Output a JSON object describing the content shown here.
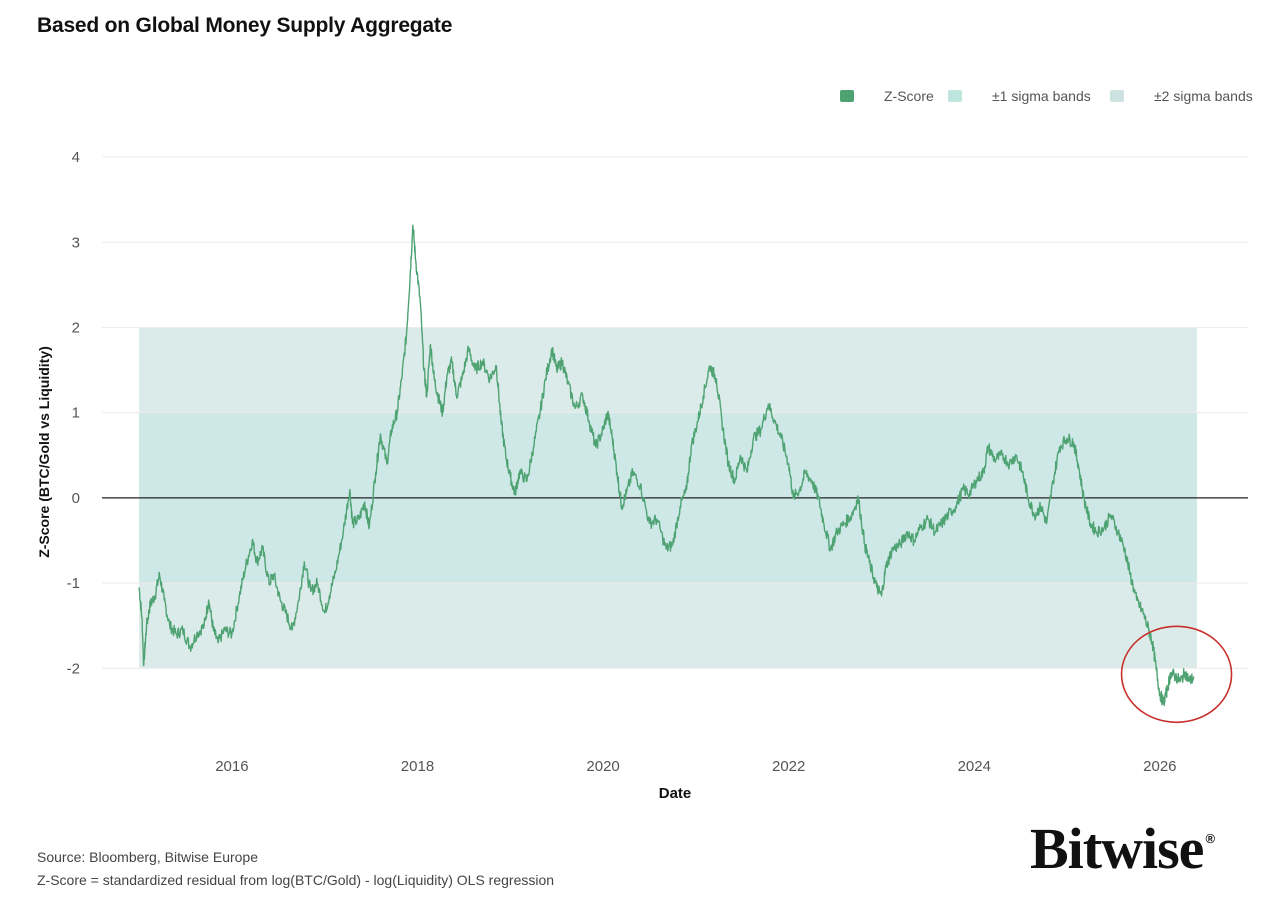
{
  "chart_data": {
    "type": "line",
    "title": "Based on Global Money Supply Aggregate",
    "xlabel": "Date",
    "ylabel": "Z-Score (BTC/Gold vs Liquidity)",
    "xlim": [
      2014.6,
      2026.95
    ],
    "ylim": [
      -2.9,
      4.2
    ],
    "x_ticks": [
      2016,
      2018,
      2020,
      2022,
      2024,
      2026
    ],
    "y_ticks": [
      4,
      3,
      2,
      1,
      0,
      -1,
      -2
    ],
    "y_tick_labels": [
      "4",
      "3",
      "2",
      "1",
      "0",
      "-1",
      "-2"
    ],
    "grid": true,
    "legend_position": "top-right",
    "band_x_range": [
      2015.0,
      2026.4
    ],
    "bands": [
      {
        "name": "±1 sigma bands",
        "lower": -1,
        "upper": 1,
        "color": "#cde8e6"
      },
      {
        "name": "±2 sigma bands",
        "lower": -2,
        "upper": 2,
        "color": "#dbebea"
      }
    ],
    "series": [
      {
        "name": "Z-Score",
        "color": "#4fa373",
        "points": [
          [
            2015.0,
            -1.05
          ],
          [
            2015.03,
            -1.4
          ],
          [
            2015.05,
            -1.95
          ],
          [
            2015.08,
            -1.5
          ],
          [
            2015.12,
            -1.25
          ],
          [
            2015.17,
            -1.15
          ],
          [
            2015.22,
            -0.9
          ],
          [
            2015.27,
            -1.2
          ],
          [
            2015.33,
            -1.5
          ],
          [
            2015.4,
            -1.6
          ],
          [
            2015.47,
            -1.55
          ],
          [
            2015.55,
            -1.75
          ],
          [
            2015.62,
            -1.6
          ],
          [
            2015.7,
            -1.5
          ],
          [
            2015.75,
            -1.2
          ],
          [
            2015.8,
            -1.55
          ],
          [
            2015.85,
            -1.7
          ],
          [
            2015.92,
            -1.55
          ],
          [
            2016.0,
            -1.6
          ],
          [
            2016.08,
            -1.15
          ],
          [
            2016.15,
            -0.8
          ],
          [
            2016.22,
            -0.5
          ],
          [
            2016.27,
            -0.75
          ],
          [
            2016.33,
            -0.6
          ],
          [
            2016.4,
            -1.0
          ],
          [
            2016.45,
            -0.9
          ],
          [
            2016.52,
            -1.2
          ],
          [
            2016.58,
            -1.35
          ],
          [
            2016.65,
            -1.55
          ],
          [
            2016.72,
            -1.2
          ],
          [
            2016.78,
            -0.75
          ],
          [
            2016.85,
            -1.1
          ],
          [
            2016.92,
            -1.0
          ],
          [
            2017.0,
            -1.35
          ],
          [
            2017.05,
            -1.15
          ],
          [
            2017.12,
            -0.85
          ],
          [
            2017.2,
            -0.4
          ],
          [
            2017.27,
            0.1
          ],
          [
            2017.3,
            -0.3
          ],
          [
            2017.37,
            -0.25
          ],
          [
            2017.43,
            -0.05
          ],
          [
            2017.48,
            -0.35
          ],
          [
            2017.55,
            0.3
          ],
          [
            2017.6,
            0.75
          ],
          [
            2017.67,
            0.4
          ],
          [
            2017.72,
            0.8
          ],
          [
            2017.78,
            1.0
          ],
          [
            2017.83,
            1.4
          ],
          [
            2017.88,
            1.9
          ],
          [
            2017.92,
            2.6
          ],
          [
            2017.95,
            3.2
          ],
          [
            2017.98,
            2.8
          ],
          [
            2018.03,
            2.3
          ],
          [
            2018.07,
            1.5
          ],
          [
            2018.1,
            1.2
          ],
          [
            2018.14,
            1.8
          ],
          [
            2018.18,
            1.4
          ],
          [
            2018.22,
            1.2
          ],
          [
            2018.27,
            1.0
          ],
          [
            2018.32,
            1.45
          ],
          [
            2018.37,
            1.6
          ],
          [
            2018.42,
            1.2
          ],
          [
            2018.48,
            1.4
          ],
          [
            2018.55,
            1.75
          ],
          [
            2018.62,
            1.5
          ],
          [
            2018.7,
            1.6
          ],
          [
            2018.78,
            1.4
          ],
          [
            2018.85,
            1.55
          ],
          [
            2018.9,
            0.9
          ],
          [
            2018.95,
            0.5
          ],
          [
            2019.0,
            0.25
          ],
          [
            2019.05,
            0.05
          ],
          [
            2019.1,
            0.3
          ],
          [
            2019.18,
            0.2
          ],
          [
            2019.25,
            0.6
          ],
          [
            2019.32,
            1.0
          ],
          [
            2019.38,
            1.4
          ],
          [
            2019.45,
            1.75
          ],
          [
            2019.5,
            1.5
          ],
          [
            2019.56,
            1.6
          ],
          [
            2019.62,
            1.35
          ],
          [
            2019.7,
            1.05
          ],
          [
            2019.78,
            1.2
          ],
          [
            2019.85,
            0.9
          ],
          [
            2019.92,
            0.6
          ],
          [
            2020.0,
            0.8
          ],
          [
            2020.05,
            1.0
          ],
          [
            2020.1,
            0.7
          ],
          [
            2020.15,
            0.3
          ],
          [
            2020.2,
            -0.1
          ],
          [
            2020.25,
            0.05
          ],
          [
            2020.32,
            0.3
          ],
          [
            2020.4,
            0.15
          ],
          [
            2020.5,
            -0.3
          ],
          [
            2020.58,
            -0.25
          ],
          [
            2020.68,
            -0.6
          ],
          [
            2020.75,
            -0.55
          ],
          [
            2020.83,
            -0.1
          ],
          [
            2020.9,
            0.1
          ],
          [
            2020.95,
            0.6
          ],
          [
            2021.02,
            0.9
          ],
          [
            2021.08,
            1.2
          ],
          [
            2021.15,
            1.55
          ],
          [
            2021.22,
            1.4
          ],
          [
            2021.28,
            0.9
          ],
          [
            2021.35,
            0.4
          ],
          [
            2021.42,
            0.2
          ],
          [
            2021.48,
            0.5
          ],
          [
            2021.55,
            0.3
          ],
          [
            2021.62,
            0.7
          ],
          [
            2021.7,
            0.8
          ],
          [
            2021.78,
            1.1
          ],
          [
            2021.85,
            0.9
          ],
          [
            2021.92,
            0.7
          ],
          [
            2022.0,
            0.4
          ],
          [
            2022.05,
            0.0
          ],
          [
            2022.12,
            0.1
          ],
          [
            2022.18,
            0.3
          ],
          [
            2022.25,
            0.2
          ],
          [
            2022.32,
            0.0
          ],
          [
            2022.38,
            -0.3
          ],
          [
            2022.45,
            -0.6
          ],
          [
            2022.52,
            -0.4
          ],
          [
            2022.6,
            -0.3
          ],
          [
            2022.68,
            -0.2
          ],
          [
            2022.75,
            0.0
          ],
          [
            2022.82,
            -0.55
          ],
          [
            2022.88,
            -0.8
          ],
          [
            2022.95,
            -1.05
          ],
          [
            2023.0,
            -1.15
          ],
          [
            2023.05,
            -0.8
          ],
          [
            2023.12,
            -0.6
          ],
          [
            2023.2,
            -0.55
          ],
          [
            2023.28,
            -0.4
          ],
          [
            2023.35,
            -0.5
          ],
          [
            2023.42,
            -0.35
          ],
          [
            2023.5,
            -0.25
          ],
          [
            2023.58,
            -0.4
          ],
          [
            2023.65,
            -0.3
          ],
          [
            2023.72,
            -0.2
          ],
          [
            2023.8,
            -0.1
          ],
          [
            2023.88,
            0.1
          ],
          [
            2023.95,
            0.05
          ],
          [
            2024.02,
            0.2
          ],
          [
            2024.1,
            0.3
          ],
          [
            2024.15,
            0.6
          ],
          [
            2024.22,
            0.45
          ],
          [
            2024.3,
            0.5
          ],
          [
            2024.38,
            0.4
          ],
          [
            2024.45,
            0.5
          ],
          [
            2024.52,
            0.3
          ],
          [
            2024.58,
            0.0
          ],
          [
            2024.65,
            -0.2
          ],
          [
            2024.72,
            -0.1
          ],
          [
            2024.78,
            -0.3
          ],
          [
            2024.85,
            0.2
          ],
          [
            2024.92,
            0.6
          ],
          [
            2025.0,
            0.7
          ],
          [
            2025.07,
            0.65
          ],
          [
            2025.12,
            0.4
          ],
          [
            2025.18,
            0.0
          ],
          [
            2025.25,
            -0.3
          ],
          [
            2025.32,
            -0.4
          ],
          [
            2025.4,
            -0.35
          ],
          [
            2025.47,
            -0.2
          ],
          [
            2025.55,
            -0.4
          ],
          [
            2025.62,
            -0.6
          ],
          [
            2025.68,
            -0.9
          ],
          [
            2025.75,
            -1.2
          ],
          [
            2025.82,
            -1.35
          ],
          [
            2025.88,
            -1.55
          ],
          [
            2025.92,
            -1.7
          ],
          [
            2025.96,
            -2.0
          ],
          [
            2026.0,
            -2.3
          ],
          [
            2026.04,
            -2.4
          ],
          [
            2026.08,
            -2.25
          ],
          [
            2026.12,
            -2.05
          ],
          [
            2026.17,
            -2.1
          ],
          [
            2026.22,
            -2.15
          ],
          [
            2026.27,
            -2.05
          ],
          [
            2026.32,
            -2.15
          ],
          [
            2026.37,
            -2.1
          ]
        ]
      }
    ],
    "annotations": [
      {
        "type": "circle",
        "center": [
          2026.18,
          -2.07
        ],
        "color": "#c8302c"
      }
    ]
  },
  "legend": [
    {
      "label": "Z-Score",
      "color": "#4fa373"
    },
    {
      "label": "±1 sigma bands",
      "color": "#bfe6de"
    },
    {
      "label": "±2 sigma bands",
      "color": "#cde3e1"
    }
  ],
  "footer": {
    "source": "Source: Bloomberg, Bitwise Europe",
    "note": "Z-Score = standardized residual from log(BTC/Gold) - log(Liquidity) OLS regression"
  },
  "logo": {
    "text": "Bitwise",
    "mark": "®"
  }
}
